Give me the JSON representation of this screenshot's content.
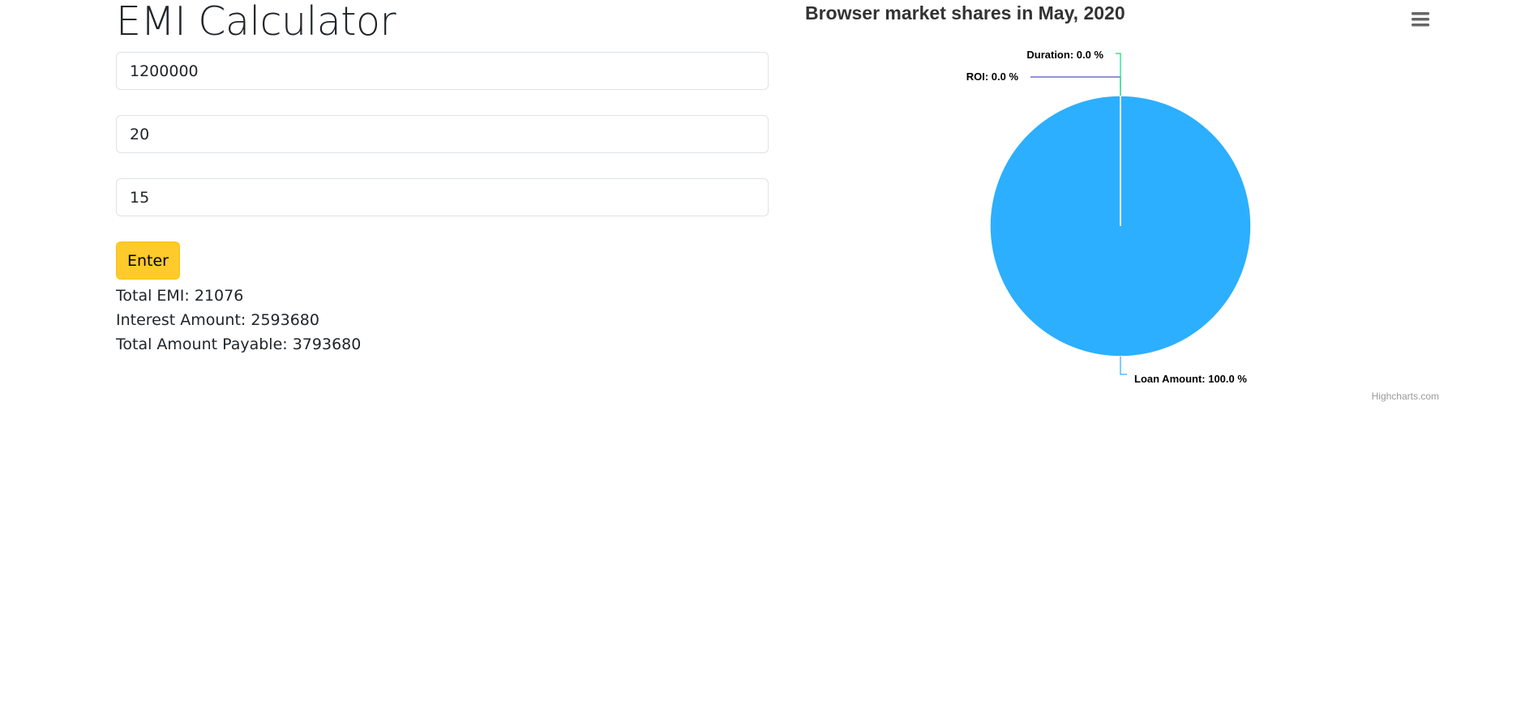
{
  "app": {
    "title": "EMI Calculator"
  },
  "form": {
    "loan_amount_value": "1200000",
    "roi_value": "20",
    "duration_value": "15",
    "enter_label": "Enter"
  },
  "results": {
    "total_emi": "Total EMI: 21076",
    "interest_amount": "Interest Amount: 2593680",
    "total_payable": "Total Amount Payable: 3793680"
  },
  "chart": {
    "credit": "Highcharts.com",
    "menu_icon": "hamburger-menu-icon"
  },
  "chart_data": {
    "type": "pie",
    "title": "Browser market shares in May, 2020",
    "slices": [
      {
        "name": "Loan Amount",
        "value": 100.0,
        "label": "Loan Amount: 100.0 %",
        "color": "#2caffe"
      },
      {
        "name": "ROI",
        "value": 0.0,
        "label": "ROI: 0.0 %",
        "color": "#544fc5"
      },
      {
        "name": "Duration",
        "value": 0.0,
        "label": "Duration: 0.0 %",
        "color": "#00e272"
      }
    ],
    "legend": "none"
  }
}
